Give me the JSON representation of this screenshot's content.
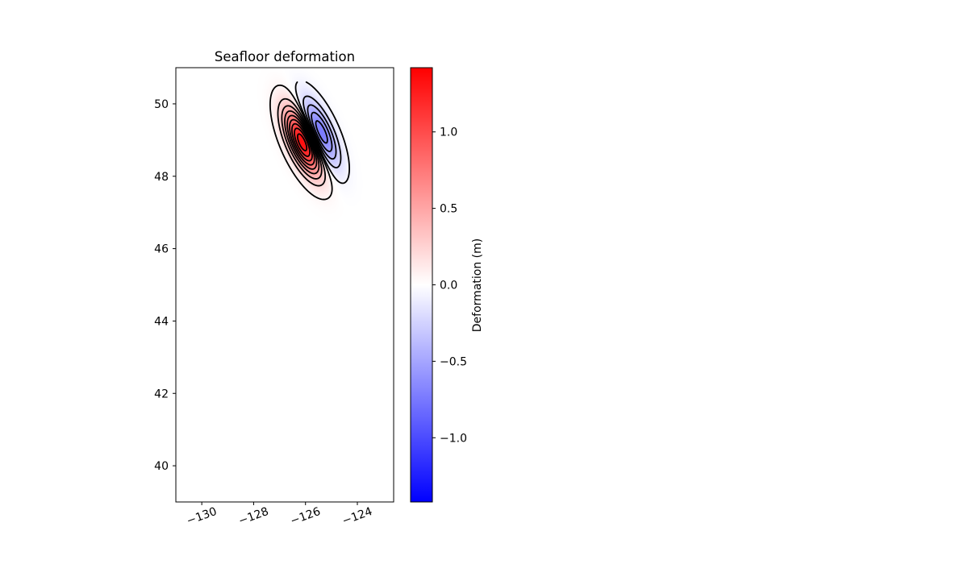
{
  "chart_data": {
    "type": "heatmap",
    "title": "Seafloor deformation",
    "xlabel": "",
    "ylabel": "",
    "xlim": [
      -131,
      -122.6
    ],
    "ylim": [
      39,
      51
    ],
    "xticks": [
      -130,
      -128,
      -126,
      -124
    ],
    "xtick_labels": [
      "−130",
      "−128",
      "−126",
      "−124"
    ],
    "yticks": [
      40,
      42,
      44,
      46,
      48,
      50
    ],
    "ytick_labels": [
      "40",
      "42",
      "44",
      "46",
      "48",
      "50"
    ],
    "grid": false,
    "colormap": "bwr",
    "colormap_colors": [
      "#0000ff",
      "#ffffff",
      "#ff0000"
    ],
    "contour_color": "#000000",
    "colorbar": {
      "label": "Deformation (m)",
      "vmin": -1.42,
      "vmax": 1.42,
      "ticks": [
        -1.0,
        -0.5,
        0.0,
        0.5,
        1.0
      ],
      "tick_labels": [
        "−1.0",
        "−0.5",
        "0.0",
        "0.5",
        "1.0"
      ]
    },
    "features": [
      {
        "kind": "uplift",
        "center_lon": -126.1,
        "center_lat": 48.95,
        "peak": 1.4
      },
      {
        "kind": "subsidence",
        "center_lon": -125.45,
        "center_lat": 49.2,
        "peak": -0.85
      }
    ],
    "contour_levels": [
      -0.8,
      -0.65,
      -0.5,
      -0.35,
      -0.2,
      -0.05,
      0.05,
      0.2,
      0.35,
      0.5,
      0.65,
      0.8,
      0.95,
      1.1,
      1.25
    ]
  }
}
